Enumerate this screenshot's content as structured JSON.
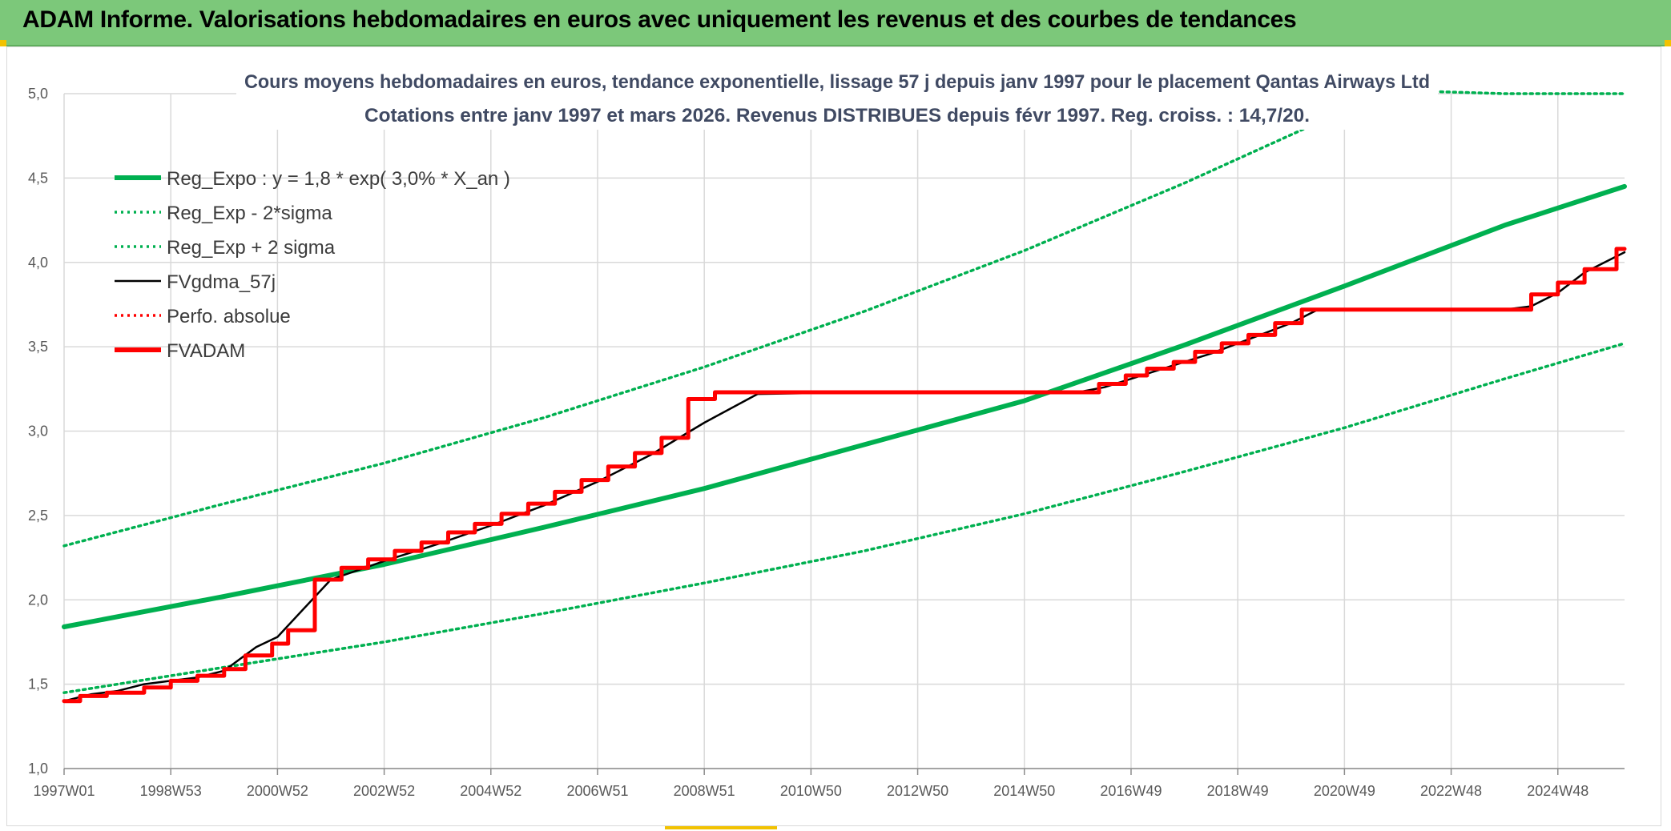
{
  "header": {
    "title": "ADAM Informe. Valorisations hebdomadaires en euros avec uniquement les revenus et des courbes de tendances"
  },
  "colors": {
    "banner": "#7cc87a",
    "reg_expo": "#00b050",
    "fvgdma": "#000000",
    "fvadam": "#ff0000",
    "grid": "#d9d9d9"
  },
  "chart_data": {
    "type": "line",
    "title_line1": "Cours moyens hebdomadaires en euros, tendance exponentielle, lissage 57 j depuis janv 1997 pour le placement Qantas Airways Ltd",
    "title_line2": "Cotations entre janv 1997 et mars 2026. Revenus DISTRIBUES depuis févr 1997. Reg. croiss. : 14,7/20.",
    "xlabel": "",
    "ylabel": "",
    "ylim": [
      1.0,
      5.0
    ],
    "y_ticks": [
      "1,0",
      "1,5",
      "2,0",
      "2,5",
      "3,0",
      "3,5",
      "4,0",
      "4,5",
      "5,0"
    ],
    "x_ticks": [
      "1997W01",
      "1998W53",
      "2000W52",
      "2002W52",
      "2004W52",
      "2006W51",
      "2008W51",
      "2010W50",
      "2012W50",
      "2014W50",
      "2016W49",
      "2018W49",
      "2020W49",
      "2022W48",
      "2024W48"
    ],
    "x_tick_years": [
      1997.0,
      1999.0,
      2001.0,
      2003.0,
      2005.0,
      2007.0,
      2009.0,
      2011.0,
      2013.0,
      2015.0,
      2017.0,
      2019.0,
      2021.0,
      2023.0,
      2025.0
    ],
    "xlim_years": [
      1997.0,
      2026.25
    ],
    "legend_position": "top-left",
    "grid": true,
    "series": [
      {
        "name": "Reg_Expo : y = 1,8 * exp( 3,0% *  X_an )",
        "style": "solid-thick",
        "color": "#00b050",
        "x": [
          1997.0,
          2000.0,
          2003.0,
          2006.0,
          2009.0,
          2012.0,
          2015.0,
          2018.0,
          2021.0,
          2024.0,
          2026.25
        ],
        "values": [
          1.84,
          2.02,
          2.21,
          2.43,
          2.66,
          2.92,
          3.18,
          3.51,
          3.86,
          4.22,
          4.45
        ]
      },
      {
        "name": "Reg_Exp - 2*sigma",
        "style": "dotted",
        "color": "#00b050",
        "x": [
          1997.0,
          2000.0,
          2003.0,
          2006.0,
          2009.0,
          2012.0,
          2015.0,
          2018.0,
          2021.0,
          2024.0,
          2026.25
        ],
        "values": [
          1.45,
          1.6,
          1.75,
          1.92,
          2.1,
          2.29,
          2.51,
          2.76,
          3.02,
          3.31,
          3.52
        ]
      },
      {
        "name": "Reg_Exp + 2 sigma",
        "style": "dotted",
        "color": "#00b050",
        "x": [
          1997.0,
          2000.0,
          2003.0,
          2006.0,
          2009.0,
          2012.0,
          2015.0,
          2018.0,
          2021.0,
          2022.0,
          2024.0,
          2026.25
        ],
        "values": [
          2.32,
          2.57,
          2.81,
          3.08,
          3.38,
          3.71,
          4.07,
          4.47,
          4.9,
          5.05,
          5.0,
          5.0
        ]
      },
      {
        "name": "FVgdma_57j",
        "style": "solid",
        "color": "#000000",
        "x": [
          1997.0,
          1997.5,
          1998.0,
          1998.5,
          1999.0,
          1999.5,
          2000.0,
          2000.3,
          2000.6,
          2001.0,
          2002.0,
          2003.0,
          2004.0,
          2005.0,
          2006.0,
          2007.0,
          2008.0,
          2009.0,
          2010.0,
          2012.0,
          2014.0,
          2015.0,
          2016.0,
          2016.5,
          2017.0,
          2017.5,
          2018.0,
          2018.5,
          2019.0,
          2019.5,
          2020.0,
          2020.5,
          2021.0,
          2023.0,
          2024.0,
          2024.5,
          2025.0,
          2025.5,
          2026.25
        ],
        "values": [
          1.4,
          1.44,
          1.46,
          1.5,
          1.52,
          1.54,
          1.58,
          1.65,
          1.72,
          1.78,
          2.12,
          2.23,
          2.33,
          2.44,
          2.56,
          2.7,
          2.86,
          3.05,
          3.22,
          3.23,
          3.23,
          3.23,
          3.23,
          3.26,
          3.31,
          3.36,
          3.41,
          3.46,
          3.52,
          3.58,
          3.64,
          3.72,
          3.72,
          3.72,
          3.72,
          3.74,
          3.82,
          3.94,
          4.06
        ]
      },
      {
        "name": "Perfo. absolue",
        "style": "dotted",
        "color": "#ff0000",
        "x": [],
        "values": []
      },
      {
        "name": "FVADAM",
        "style": "step-thick",
        "color": "#ff0000",
        "x": [
          1997.0,
          1997.3,
          1997.8,
          1998.5,
          1999.0,
          1999.5,
          2000.0,
          2000.4,
          2000.9,
          2001.2,
          2001.7,
          2002.2,
          2002.7,
          2003.2,
          2003.7,
          2004.2,
          2004.7,
          2005.2,
          2005.7,
          2006.2,
          2006.7,
          2007.2,
          2007.7,
          2008.2,
          2008.7,
          2009.2,
          2016.0,
          2016.4,
          2016.9,
          2017.3,
          2017.8,
          2018.2,
          2018.7,
          2019.2,
          2019.7,
          2020.2,
          2020.7,
          2024.0,
          2024.5,
          2025.0,
          2025.5,
          2026.1,
          2026.25
        ],
        "values": [
          1.4,
          1.43,
          1.45,
          1.48,
          1.52,
          1.55,
          1.59,
          1.67,
          1.74,
          1.82,
          2.12,
          2.19,
          2.24,
          2.29,
          2.34,
          2.4,
          2.45,
          2.51,
          2.57,
          2.64,
          2.71,
          2.79,
          2.87,
          2.96,
          3.19,
          3.23,
          3.23,
          3.28,
          3.33,
          3.37,
          3.41,
          3.47,
          3.52,
          3.57,
          3.64,
          3.72,
          3.72,
          3.72,
          3.81,
          3.88,
          3.96,
          4.08,
          4.08
        ]
      }
    ]
  }
}
